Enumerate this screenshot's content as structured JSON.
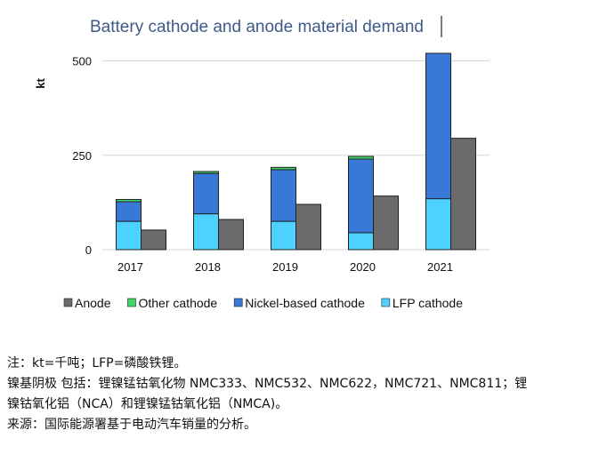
{
  "chart_data": {
    "type": "bar",
    "title": "Battery cathode and anode material demand",
    "ylabel": "kt",
    "xlabel": "",
    "ylim": [
      0,
      520
    ],
    "yticks": [
      0,
      250,
      500
    ],
    "grid": true,
    "legend_position": "bottom",
    "categories": [
      "2017",
      "2018",
      "2019",
      "2020",
      "2021"
    ],
    "stack_series": [
      {
        "name": "LFP cathode",
        "color": "#4dd2ff",
        "values": [
          75,
          95,
          75,
          45,
          135
        ]
      },
      {
        "name": "Nickel-based cathode",
        "color": "#3a78d8",
        "values": [
          52,
          107,
          137,
          195,
          385
        ]
      },
      {
        "name": "Other cathode",
        "color": "#3fd66a",
        "values": [
          6,
          5,
          6,
          7,
          0
        ]
      }
    ],
    "anode_series": {
      "name": "Anode",
      "color": "#6b6b6b",
      "values": [
        52,
        80,
        120,
        142,
        295
      ]
    },
    "legend": [
      {
        "name": "Anode",
        "color": "#6b6b6b"
      },
      {
        "name": "Other cathode",
        "color": "#3fd66a"
      },
      {
        "name": "Nickel-based cathode",
        "color": "#3a78d8"
      },
      {
        "name": "LFP cathode",
        "color": "#4dd2ff"
      }
    ]
  },
  "notes": {
    "line1": "注：kt=千吨；LFP=磷酸铁锂。",
    "line2": "镍基阴极 包括：锂镍锰钴氧化物 NMC333、NMC532、NMC622，NMC721、NMC811；锂",
    "line3": "镍钴氧化铝（NCA）和锂镍锰钴氧化铝（NMCA)。",
    "line4": "来源：国际能源署基于电动汽车销量的分析。"
  }
}
